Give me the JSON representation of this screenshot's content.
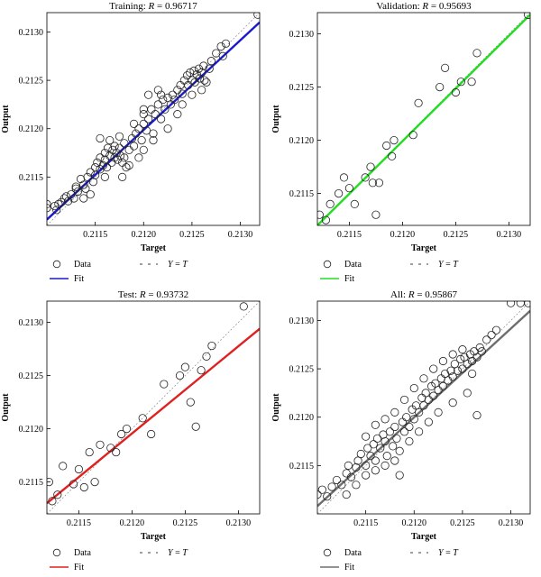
{
  "chart_data": [
    {
      "id": "training",
      "type": "scatter",
      "title_prefix": "Training: ",
      "title_r": "R",
      "title_value": " = 0.96717",
      "xlabel": "Target",
      "ylabel": "Output",
      "xlim": [
        0.211,
        0.2132
      ],
      "ylim": [
        0.211,
        0.2132
      ],
      "xticks": [
        "0.2115",
        "0.2120",
        "0.2125",
        "0.2130"
      ],
      "xtick_values": [
        0.2115,
        0.212,
        0.2125,
        0.213
      ],
      "yticks": [
        "0.2115",
        "0.2120",
        "0.2125",
        "0.2130"
      ],
      "ytick_values": [
        0.2115,
        0.212,
        0.2125,
        0.213
      ],
      "fit_color": "#1a1acc",
      "fit": [
        [
          0.211,
          0.21106
        ],
        [
          0.2132,
          0.2131
        ]
      ],
      "points": [
        [
          0.211,
          0.21122
        ],
        [
          0.211,
          0.21118
        ],
        [
          0.21108,
          0.2112
        ],
        [
          0.2111,
          0.21116
        ],
        [
          0.21112,
          0.21122
        ],
        [
          0.21115,
          0.21124
        ],
        [
          0.21118,
          0.21128
        ],
        [
          0.2112,
          0.2113
        ],
        [
          0.21122,
          0.21125
        ],
        [
          0.21125,
          0.21132
        ],
        [
          0.21128,
          0.21128
        ],
        [
          0.2113,
          0.2114
        ],
        [
          0.21132,
          0.21135
        ],
        [
          0.21135,
          0.21148
        ],
        [
          0.21138,
          0.21142
        ],
        [
          0.2114,
          0.21138
        ],
        [
          0.21142,
          0.2115
        ],
        [
          0.21145,
          0.21155
        ],
        [
          0.21148,
          0.21145
        ],
        [
          0.2115,
          0.2116
        ],
        [
          0.2115,
          0.21152
        ],
        [
          0.21152,
          0.21165
        ],
        [
          0.21155,
          0.21158
        ],
        [
          0.21155,
          0.2117
        ],
        [
          0.21158,
          0.21162
        ],
        [
          0.2116,
          0.21175
        ],
        [
          0.2116,
          0.21168
        ],
        [
          0.21162,
          0.2116
        ],
        [
          0.21163,
          0.2118
        ],
        [
          0.21165,
          0.21172
        ],
        [
          0.21167,
          0.21165
        ],
        [
          0.21168,
          0.21178
        ],
        [
          0.2117,
          0.21182
        ],
        [
          0.2117,
          0.2117
        ],
        [
          0.21172,
          0.21175
        ],
        [
          0.21173,
          0.21168
        ],
        [
          0.21175,
          0.2118
        ],
        [
          0.21176,
          0.21172
        ],
        [
          0.21178,
          0.21165
        ],
        [
          0.2118,
          0.21185
        ],
        [
          0.2118,
          0.2117
        ],
        [
          0.21182,
          0.2116
        ],
        [
          0.21185,
          0.21178
        ],
        [
          0.21188,
          0.2119
        ],
        [
          0.2119,
          0.21182
        ],
        [
          0.21192,
          0.21195
        ],
        [
          0.21195,
          0.212
        ],
        [
          0.21198,
          0.21188
        ],
        [
          0.212,
          0.21205
        ],
        [
          0.212,
          0.21215
        ],
        [
          0.21203,
          0.21198
        ],
        [
          0.21205,
          0.2121
        ],
        [
          0.21208,
          0.2122
        ],
        [
          0.2121,
          0.21195
        ],
        [
          0.21212,
          0.21215
        ],
        [
          0.21215,
          0.21225
        ],
        [
          0.21218,
          0.2121
        ],
        [
          0.2122,
          0.2123
        ],
        [
          0.21222,
          0.2122
        ],
        [
          0.21225,
          0.21232
        ],
        [
          0.21228,
          0.21225
        ],
        [
          0.2123,
          0.21235
        ],
        [
          0.21232,
          0.2123
        ],
        [
          0.21235,
          0.2124
        ],
        [
          0.21238,
          0.21245
        ],
        [
          0.2124,
          0.21236
        ],
        [
          0.21242,
          0.2125
        ],
        [
          0.21245,
          0.21255
        ],
        [
          0.21246,
          0.21245
        ],
        [
          0.21248,
          0.21258
        ],
        [
          0.2125,
          0.2125
        ],
        [
          0.21252,
          0.2126
        ],
        [
          0.21253,
          0.21248
        ],
        [
          0.21255,
          0.21256
        ],
        [
          0.21257,
          0.21262
        ],
        [
          0.21258,
          0.21252
        ],
        [
          0.2126,
          0.21258
        ],
        [
          0.21262,
          0.21265
        ],
        [
          0.21263,
          0.2125
        ],
        [
          0.21265,
          0.21248
        ],
        [
          0.21268,
          0.21262
        ],
        [
          0.2127,
          0.2127
        ],
        [
          0.21275,
          0.21278
        ],
        [
          0.2128,
          0.21285
        ],
        [
          0.21282,
          0.21275
        ],
        [
          0.21285,
          0.21288
        ],
        [
          0.21318,
          0.21318
        ],
        [
          0.2113,
          0.21138
        ],
        [
          0.21138,
          0.21128
        ],
        [
          0.21145,
          0.21132
        ],
        [
          0.2116,
          0.2115
        ],
        [
          0.21178,
          0.2115
        ],
        [
          0.21185,
          0.21162
        ],
        [
          0.21195,
          0.2117
        ],
        [
          0.212,
          0.21178
        ],
        [
          0.2121,
          0.21188
        ],
        [
          0.21218,
          0.21235
        ],
        [
          0.21225,
          0.212
        ],
        [
          0.21235,
          0.21215
        ],
        [
          0.21155,
          0.2119
        ],
        [
          0.21165,
          0.21188
        ],
        [
          0.21175,
          0.21192
        ],
        [
          0.2119,
          0.21205
        ],
        [
          0.212,
          0.2122
        ],
        [
          0.21205,
          0.21235
        ],
        [
          0.21215,
          0.2124
        ],
        [
          0.2124,
          0.21225
        ],
        [
          0.2125,
          0.21235
        ],
        [
          0.2126,
          0.2124
        ]
      ]
    },
    {
      "id": "validation",
      "type": "scatter",
      "title_prefix": "Validation: ",
      "title_r": "R",
      "title_value": " = 0.95693",
      "xlabel": "Target",
      "ylabel": "Output",
      "xlim": [
        0.2112,
        0.2132
      ],
      "ylim": [
        0.2112,
        0.2132
      ],
      "xticks": [
        "0.2115",
        "0.2120",
        "0.2125",
        "0.2130"
      ],
      "xtick_values": [
        0.2115,
        0.212,
        0.2125,
        0.213
      ],
      "yticks": [
        "0.2115",
        "0.2120",
        "0.2125",
        "0.2130"
      ],
      "ytick_values": [
        0.2115,
        0.212,
        0.2125,
        0.213
      ],
      "fit_color": "#22dd22",
      "fit": [
        [
          0.2112,
          0.2112
        ],
        [
          0.2132,
          0.21318
        ]
      ],
      "points": [
        [
          0.21122,
          0.2113
        ],
        [
          0.21128,
          0.21125
        ],
        [
          0.21132,
          0.2114
        ],
        [
          0.2114,
          0.2115
        ],
        [
          0.21145,
          0.21165
        ],
        [
          0.2115,
          0.21155
        ],
        [
          0.21155,
          0.2114
        ],
        [
          0.21165,
          0.21165
        ],
        [
          0.2117,
          0.21175
        ],
        [
          0.21172,
          0.2116
        ],
        [
          0.21175,
          0.2113
        ],
        [
          0.21178,
          0.2116
        ],
        [
          0.21185,
          0.21195
        ],
        [
          0.2119,
          0.21185
        ],
        [
          0.21192,
          0.212
        ],
        [
          0.2121,
          0.21205
        ],
        [
          0.21215,
          0.21235
        ],
        [
          0.21235,
          0.2125
        ],
        [
          0.2124,
          0.21268
        ],
        [
          0.2125,
          0.21245
        ],
        [
          0.21255,
          0.21255
        ],
        [
          0.21265,
          0.21255
        ],
        [
          0.2127,
          0.21282
        ],
        [
          0.21318,
          0.21318
        ]
      ]
    },
    {
      "id": "test",
      "type": "scatter",
      "title_prefix": "Test: ",
      "title_r": "R",
      "title_value": " = 0.93732",
      "xlabel": "Target",
      "ylabel": "Output",
      "xlim": [
        0.2112,
        0.2132
      ],
      "ylim": [
        0.2112,
        0.2132
      ],
      "xticks": [
        "0.2115",
        "0.2120",
        "0.2125",
        "0.2130"
      ],
      "xtick_values": [
        0.2115,
        0.212,
        0.2125,
        0.213
      ],
      "yticks": [
        "0.2115",
        "0.2120",
        "0.2125",
        "0.2130"
      ],
      "ytick_values": [
        0.2115,
        0.212,
        0.2125,
        0.213
      ],
      "fit_color": "#e02020",
      "fit": [
        [
          0.2112,
          0.2113
        ],
        [
          0.2132,
          0.21294
        ]
      ],
      "points": [
        [
          0.21122,
          0.2115
        ],
        [
          0.21125,
          0.21132
        ],
        [
          0.2113,
          0.21138
        ],
        [
          0.21135,
          0.21165
        ],
        [
          0.21145,
          0.21148
        ],
        [
          0.2115,
          0.21162
        ],
        [
          0.21155,
          0.21145
        ],
        [
          0.2116,
          0.21178
        ],
        [
          0.21165,
          0.2115
        ],
        [
          0.2117,
          0.21185
        ],
        [
          0.2118,
          0.21182
        ],
        [
          0.21185,
          0.21178
        ],
        [
          0.2119,
          0.21195
        ],
        [
          0.21195,
          0.212
        ],
        [
          0.2121,
          0.2121
        ],
        [
          0.21218,
          0.21195
        ],
        [
          0.2123,
          0.21242
        ],
        [
          0.21245,
          0.2125
        ],
        [
          0.2125,
          0.21258
        ],
        [
          0.21255,
          0.21225
        ],
        [
          0.2126,
          0.21202
        ],
        [
          0.21265,
          0.21255
        ],
        [
          0.2127,
          0.21268
        ],
        [
          0.21275,
          0.21278
        ],
        [
          0.21305,
          0.21315
        ]
      ]
    },
    {
      "id": "all",
      "type": "scatter",
      "title_prefix": "All: ",
      "title_r": "R",
      "title_value": " = 0.95867",
      "xlabel": "Target",
      "ylabel": "Output",
      "xlim": [
        0.211,
        0.2132
      ],
      "ylim": [
        0.211,
        0.2132
      ],
      "xticks": [
        "0.2115",
        "0.2120",
        "0.2125",
        "0.2130"
      ],
      "xtick_values": [
        0.2115,
        0.212,
        0.2125,
        0.213
      ],
      "yticks": [
        "0.2115",
        "0.2120",
        "0.2125",
        "0.2130"
      ],
      "ytick_values": [
        0.2115,
        0.212,
        0.2125,
        0.213
      ],
      "fit_color": "#6e6e6e",
      "fit": [
        [
          0.211,
          0.21108
        ],
        [
          0.2132,
          0.2131
        ]
      ],
      "points": [
        [
          0.211,
          0.2112
        ],
        [
          0.21105,
          0.21125
        ],
        [
          0.2111,
          0.21118
        ],
        [
          0.21115,
          0.21128
        ],
        [
          0.2112,
          0.21135
        ],
        [
          0.21125,
          0.2113
        ],
        [
          0.2113,
          0.21142
        ],
        [
          0.21132,
          0.2115
        ],
        [
          0.21135,
          0.21138
        ],
        [
          0.2114,
          0.21148
        ],
        [
          0.21142,
          0.21155
        ],
        [
          0.21145,
          0.21162
        ],
        [
          0.2115,
          0.2115
        ],
        [
          0.21152,
          0.21168
        ],
        [
          0.21155,
          0.2116
        ],
        [
          0.21158,
          0.21172
        ],
        [
          0.2116,
          0.21155
        ],
        [
          0.21162,
          0.21178
        ],
        [
          0.21165,
          0.21168
        ],
        [
          0.21168,
          0.21182
        ],
        [
          0.2117,
          0.21175
        ],
        [
          0.21172,
          0.2116
        ],
        [
          0.21175,
          0.21185
        ],
        [
          0.21178,
          0.2117
        ],
        [
          0.2118,
          0.2119
        ],
        [
          0.21182,
          0.21178
        ],
        [
          0.21185,
          0.21165
        ],
        [
          0.21188,
          0.21195
        ],
        [
          0.2119,
          0.21185
        ],
        [
          0.21192,
          0.212
        ],
        [
          0.21195,
          0.2119
        ],
        [
          0.21198,
          0.21208
        ],
        [
          0.212,
          0.21198
        ],
        [
          0.21202,
          0.21212
        ],
        [
          0.21205,
          0.21205
        ],
        [
          0.21208,
          0.2122
        ],
        [
          0.2121,
          0.21212
        ],
        [
          0.21212,
          0.21225
        ],
        [
          0.21215,
          0.21218
        ],
        [
          0.21218,
          0.21232
        ],
        [
          0.2122,
          0.21222
        ],
        [
          0.21222,
          0.21235
        ],
        [
          0.21225,
          0.21228
        ],
        [
          0.21228,
          0.2124
        ],
        [
          0.2123,
          0.21232
        ],
        [
          0.21232,
          0.21245
        ],
        [
          0.21235,
          0.21238
        ],
        [
          0.21238,
          0.21248
        ],
        [
          0.2124,
          0.21242
        ],
        [
          0.21242,
          0.21255
        ],
        [
          0.21245,
          0.21248
        ],
        [
          0.21248,
          0.2126
        ],
        [
          0.2125,
          0.2125
        ],
        [
          0.21252,
          0.21262
        ],
        [
          0.21255,
          0.21255
        ],
        [
          0.21258,
          0.21265
        ],
        [
          0.2126,
          0.21258
        ],
        [
          0.21262,
          0.21268
        ],
        [
          0.21265,
          0.21262
        ],
        [
          0.21268,
          0.21272
        ],
        [
          0.2127,
          0.21268
        ],
        [
          0.21275,
          0.2128
        ],
        [
          0.2128,
          0.21285
        ],
        [
          0.21285,
          0.2129
        ],
        [
          0.213,
          0.21318
        ],
        [
          0.2131,
          0.21318
        ],
        [
          0.21318,
          0.21318
        ],
        [
          0.2113,
          0.2112
        ],
        [
          0.2114,
          0.2113
        ],
        [
          0.2115,
          0.2114
        ],
        [
          0.2116,
          0.21145
        ],
        [
          0.2117,
          0.2115
        ],
        [
          0.2118,
          0.21155
        ],
        [
          0.21185,
          0.2114
        ],
        [
          0.2115,
          0.2118
        ],
        [
          0.2116,
          0.21192
        ],
        [
          0.2117,
          0.21198
        ],
        [
          0.2118,
          0.21205
        ],
        [
          0.2119,
          0.21218
        ],
        [
          0.212,
          0.2123
        ],
        [
          0.2121,
          0.2124
        ],
        [
          0.2122,
          0.2125
        ],
        [
          0.2123,
          0.21258
        ],
        [
          0.2124,
          0.21265
        ],
        [
          0.2125,
          0.2127
        ],
        [
          0.2126,
          0.21245
        ],
        [
          0.21265,
          0.21202
        ],
        [
          0.21255,
          0.21225
        ],
        [
          0.2124,
          0.21215
        ],
        [
          0.21225,
          0.21205
        ],
        [
          0.21215,
          0.21195
        ],
        [
          0.21205,
          0.21185
        ],
        [
          0.21195,
          0.21175
        ]
      ]
    }
  ],
  "legend": {
    "data_label": "Data",
    "fit_label": "Fit",
    "identity_prefix": "Y",
    "identity_eq": " = ",
    "identity_suffix": "T"
  },
  "colors": {
    "point_stroke": "#222222",
    "identity_line": "#999999"
  }
}
